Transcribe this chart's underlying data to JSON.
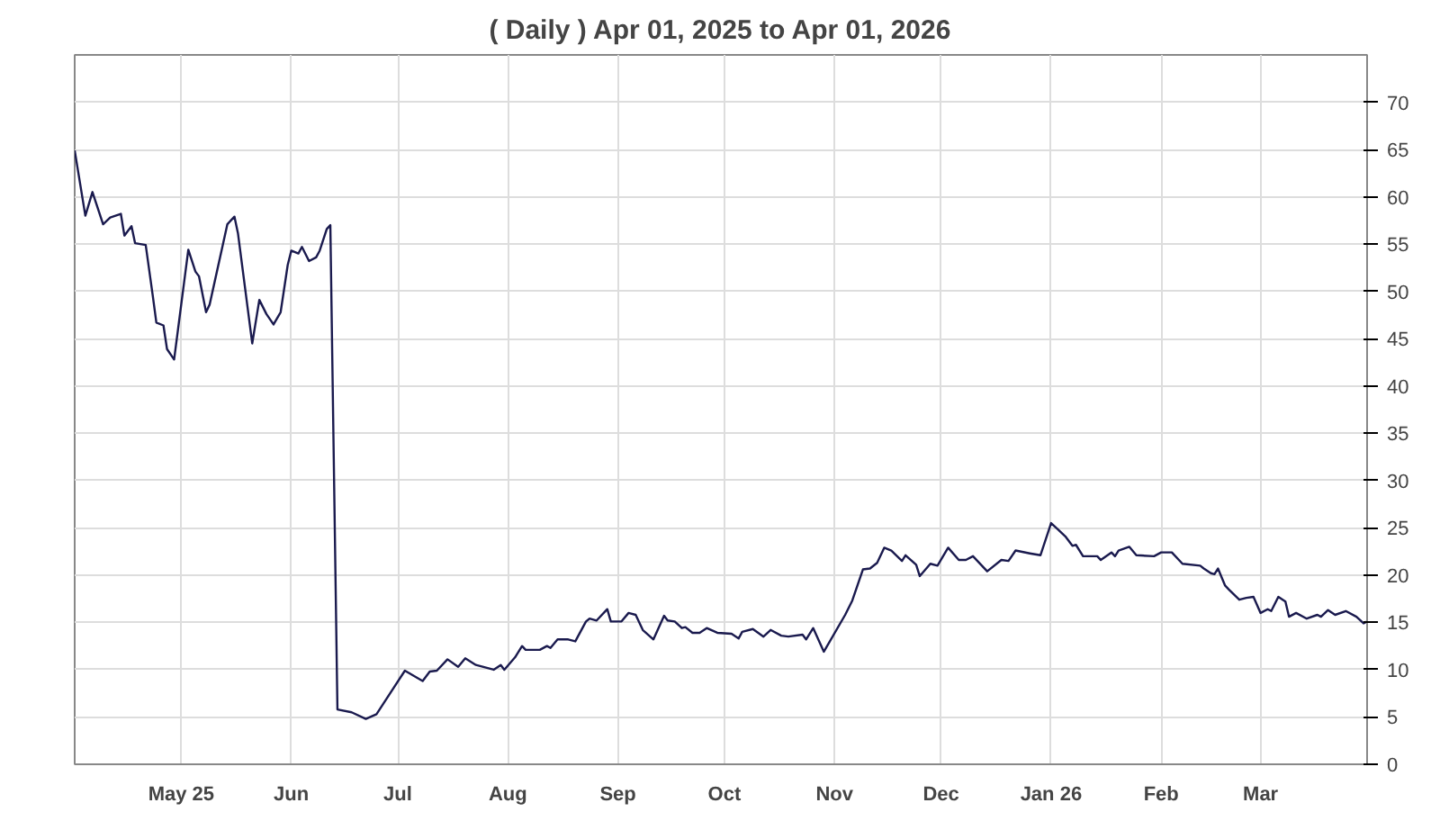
{
  "chart_data": {
    "type": "line",
    "title": "( Daily ) Apr 01, 2025 to Apr 01, 2026",
    "x": [
      "2025-04-01",
      "2025-04-04",
      "2025-04-06",
      "2025-04-09",
      "2025-04-11",
      "2025-04-14",
      "2025-04-15",
      "2025-04-17",
      "2025-04-18",
      "2025-04-21",
      "2025-04-23",
      "2025-04-24",
      "2025-04-26",
      "2025-04-27",
      "2025-04-29",
      "2025-05-03",
      "2025-05-05",
      "2025-05-06",
      "2025-05-08",
      "2025-05-09",
      "2025-05-14",
      "2025-05-16",
      "2025-05-17",
      "2025-05-21",
      "2025-05-23",
      "2025-05-25",
      "2025-05-27",
      "2025-05-29",
      "2025-05-31",
      "2025-06-01",
      "2025-06-03",
      "2025-06-04",
      "2025-06-06",
      "2025-06-08",
      "2025-06-09",
      "2025-06-11",
      "2025-06-12",
      "2025-06-14",
      "2025-06-18",
      "2025-06-22",
      "2025-06-25",
      "2025-07-03",
      "2025-07-08",
      "2025-07-10",
      "2025-07-12",
      "2025-07-15",
      "2025-07-18",
      "2025-07-20",
      "2025-07-23",
      "2025-07-28",
      "2025-07-30",
      "2025-07-31",
      "2025-08-03",
      "2025-08-05",
      "2025-08-06",
      "2025-08-10",
      "2025-08-12",
      "2025-08-13",
      "2025-08-15",
      "2025-08-18",
      "2025-08-20",
      "2025-08-23",
      "2025-08-24",
      "2025-08-26",
      "2025-08-29",
      "2025-08-30",
      "2025-09-02",
      "2025-09-04",
      "2025-09-06",
      "2025-09-08",
      "2025-09-11",
      "2025-09-14",
      "2025-09-15",
      "2025-09-17",
      "2025-09-19",
      "2025-09-20",
      "2025-09-22",
      "2025-09-24",
      "2025-09-26",
      "2025-09-29",
      "2025-10-03",
      "2025-10-05",
      "2025-10-06",
      "2025-10-09",
      "2025-10-12",
      "2025-10-14",
      "2025-10-17",
      "2025-10-19",
      "2025-10-23",
      "2025-10-24",
      "2025-10-26",
      "2025-10-29",
      "2025-11-04",
      "2025-11-06",
      "2025-11-09",
      "2025-11-11",
      "2025-11-13",
      "2025-11-15",
      "2025-11-17",
      "2025-11-20",
      "2025-11-21",
      "2025-11-24",
      "2025-11-25",
      "2025-11-28",
      "2025-11-30",
      "2025-12-03",
      "2025-12-06",
      "2025-12-08",
      "2025-12-10",
      "2025-12-14",
      "2025-12-18",
      "2025-12-20",
      "2025-12-22",
      "2025-12-26",
      "2025-12-29",
      "2026-01-01",
      "2026-01-03",
      "2026-01-05",
      "2026-01-07",
      "2026-01-08",
      "2026-01-10",
      "2026-01-14",
      "2026-01-15",
      "2026-01-18",
      "2026-01-19",
      "2026-01-20",
      "2026-01-23",
      "2026-01-25",
      "2026-01-30",
      "2026-02-01",
      "2026-02-04",
      "2026-02-07",
      "2026-02-12",
      "2026-02-13",
      "2026-02-15",
      "2026-02-16",
      "2026-02-17",
      "2026-02-19",
      "2026-02-20",
      "2026-02-23",
      "2026-02-25",
      "2026-02-27",
      "2026-03-01",
      "2026-03-03",
      "2026-03-04",
      "2026-03-06",
      "2026-03-08",
      "2026-03-09",
      "2026-03-11",
      "2026-03-14",
      "2026-03-17",
      "2026-03-18",
      "2026-03-20",
      "2026-03-22",
      "2026-03-25",
      "2026-03-28",
      "2026-03-30",
      "2026-03-31"
    ],
    "values": [
      64.9,
      58.0,
      60.5,
      57.1,
      57.8,
      58.2,
      55.9,
      56.9,
      55.1,
      54.9,
      49.5,
      46.7,
      46.4,
      43.9,
      42.8,
      54.4,
      52.1,
      51.6,
      47.8,
      48.6,
      57.1,
      57.9,
      56.1,
      44.5,
      49.1,
      47.6,
      46.5,
      47.8,
      52.8,
      54.3,
      54.0,
      54.7,
      53.2,
      53.6,
      54.3,
      56.6,
      57.0,
      5.8,
      5.5,
      4.8,
      5.3,
      9.9,
      8.8,
      9.8,
      9.9,
      11.1,
      10.3,
      11.2,
      10.5,
      10.0,
      10.5,
      10.0,
      11.3,
      12.5,
      12.1,
      12.1,
      12.5,
      12.3,
      13.2,
      13.2,
      13.0,
      15.1,
      15.4,
      15.2,
      16.4,
      15.1,
      15.1,
      16.0,
      15.8,
      14.2,
      13.2,
      15.7,
      15.2,
      15.1,
      14.4,
      14.5,
      13.9,
      13.9,
      14.4,
      13.9,
      13.8,
      13.3,
      14.0,
      14.3,
      13.5,
      14.2,
      13.6,
      13.5,
      13.7,
      13.2,
      14.4,
      11.9,
      15.8,
      17.3,
      20.6,
      20.7,
      21.3,
      22.9,
      22.6,
      21.5,
      22.1,
      21.1,
      19.9,
      21.2,
      21.0,
      22.9,
      21.6,
      21.6,
      22.0,
      20.4,
      21.6,
      21.5,
      22.6,
      22.3,
      22.1,
      25.5,
      24.8,
      24.1,
      23.1,
      23.2,
      22.0,
      22.0,
      21.6,
      22.4,
      22.0,
      22.6,
      23.0,
      22.1,
      22.0,
      22.4,
      22.4,
      21.2,
      21.0,
      20.7,
      20.2,
      20.1,
      20.7,
      18.9,
      18.5,
      17.4,
      17.6,
      17.7,
      16.0,
      16.4,
      16.2,
      17.7,
      17.2,
      15.6,
      16.0,
      15.4,
      15.8,
      15.6,
      16.3,
      15.8,
      16.2,
      15.6,
      14.9,
      15.1
    ],
    "color": "#1a1a4e",
    "xlim": [
      "2025-04-01",
      "2026-03-31"
    ],
    "xticks": [
      {
        "value": "2025-05-01",
        "label": "May 25"
      },
      {
        "value": "2025-06-01",
        "label": "Jun"
      },
      {
        "value": "2025-07-01",
        "label": "Jul"
      },
      {
        "value": "2025-08-01",
        "label": "Aug"
      },
      {
        "value": "2025-09-01",
        "label": "Sep"
      },
      {
        "value": "2025-10-01",
        "label": "Oct"
      },
      {
        "value": "2025-11-01",
        "label": "Nov"
      },
      {
        "value": "2025-12-01",
        "label": "Dec"
      },
      {
        "value": "2026-01-01",
        "label": "Jan 26"
      },
      {
        "value": "2026-02-01",
        "label": "Feb"
      },
      {
        "value": "2026-03-01",
        "label": "Mar"
      }
    ],
    "ylim": [
      0,
      75
    ],
    "yticks": [
      0,
      5,
      10,
      15,
      20,
      25,
      30,
      35,
      40,
      45,
      50,
      55,
      60,
      65,
      70
    ],
    "grid": true,
    "legend": false,
    "marker": "none",
    "line_style": "solid"
  }
}
